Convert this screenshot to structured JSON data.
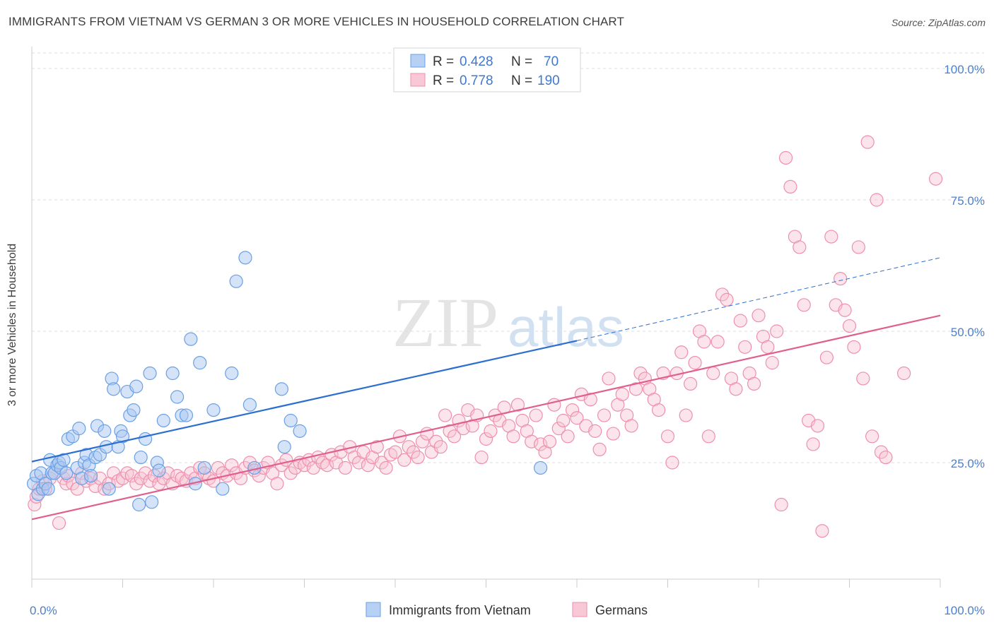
{
  "title": "IMMIGRANTS FROM VIETNAM VS GERMAN 3 OR MORE VEHICLES IN HOUSEHOLD CORRELATION CHART",
  "source": "Source: ZipAtlas.com",
  "watermark": {
    "zip": "ZIP",
    "atlas": "atlas"
  },
  "legend_top": [
    {
      "r_label": "R =",
      "r_value": "0.428",
      "n_label": "N =",
      "n_value": "70"
    },
    {
      "r_label": "R =",
      "r_value": "0.778",
      "n_label": "N =",
      "n_value": "190"
    }
  ],
  "colors": {
    "blue": "#6aa0e6",
    "blue_fill": "#a9c8f2",
    "blue_line": "#2d6fd0",
    "pink": "#ee90ad",
    "pink_fill": "#f6c4d3",
    "pink_line": "#e05f8e",
    "axis_text": "#4a7fd1",
    "grid": "#dddddd"
  },
  "chart_data": {
    "type": "scatter",
    "title": "IMMIGRANTS FROM VIETNAM VS GERMAN 3 OR MORE VEHICLES IN HOUSEHOLD CORRELATION CHART",
    "xlabel": "",
    "ylabel": "3 or more Vehicles in Household",
    "xlim": [
      0,
      100
    ],
    "ylim": [
      0,
      105
    ],
    "x_tick_labels": [
      "0.0%",
      "100.0%"
    ],
    "y_ticks": [
      25,
      50,
      75,
      100
    ],
    "y_tick_labels": [
      "25.0%",
      "50.0%",
      "75.0%",
      "100.0%"
    ],
    "grid": true,
    "legend_position": "bottom-center",
    "series": [
      {
        "name": "Immigrants from Vietnam",
        "r": 0.428,
        "n": 70,
        "trend": {
          "x0": 0,
          "y0": 25.2,
          "x1": 60,
          "y1": 48.2,
          "dashed_to_x": 100,
          "dashed_to_y": 64.0
        },
        "points": [
          [
            0.2,
            21
          ],
          [
            0.5,
            22.5
          ],
          [
            0.7,
            19
          ],
          [
            1,
            23
          ],
          [
            1.2,
            20
          ],
          [
            1.5,
            21
          ],
          [
            1.8,
            20
          ],
          [
            2,
            25.5
          ],
          [
            2.2,
            23
          ],
          [
            2.5,
            23
          ],
          [
            2.8,
            24.5
          ],
          [
            3,
            25
          ],
          [
            3.2,
            24
          ],
          [
            3.5,
            25.5
          ],
          [
            3.8,
            23
          ],
          [
            4,
            29.5
          ],
          [
            4.5,
            30
          ],
          [
            5,
            24
          ],
          [
            5.2,
            31.5
          ],
          [
            5.5,
            22
          ],
          [
            5.8,
            25
          ],
          [
            6,
            26.5
          ],
          [
            6.3,
            24.5
          ],
          [
            6.5,
            22.5
          ],
          [
            7,
            26
          ],
          [
            7.2,
            32
          ],
          [
            7.5,
            26.5
          ],
          [
            8,
            31
          ],
          [
            8.2,
            28
          ],
          [
            8.5,
            20
          ],
          [
            8.8,
            41
          ],
          [
            9,
            39
          ],
          [
            9.5,
            28
          ],
          [
            9.8,
            31
          ],
          [
            10,
            30
          ],
          [
            10.5,
            38.5
          ],
          [
            10.8,
            34
          ],
          [
            11.2,
            35
          ],
          [
            11.5,
            39.5
          ],
          [
            11.8,
            17
          ],
          [
            12,
            26
          ],
          [
            12.5,
            29.5
          ],
          [
            13,
            42
          ],
          [
            13.2,
            17.5
          ],
          [
            13.8,
            25
          ],
          [
            14,
            23.5
          ],
          [
            14.5,
            33
          ],
          [
            15.5,
            42
          ],
          [
            16,
            37.5
          ],
          [
            16.5,
            34
          ],
          [
            17,
            34
          ],
          [
            17.5,
            48.5
          ],
          [
            18,
            21
          ],
          [
            18.5,
            44
          ],
          [
            19,
            24
          ],
          [
            20,
            35
          ],
          [
            21,
            20
          ],
          [
            22,
            42
          ],
          [
            22.5,
            59.5
          ],
          [
            23.5,
            64
          ],
          [
            24,
            36
          ],
          [
            24.5,
            24
          ],
          [
            27.5,
            39
          ],
          [
            27.8,
            28
          ],
          [
            28.5,
            33
          ],
          [
            29.5,
            31
          ],
          [
            56,
            24
          ]
        ]
      },
      {
        "name": "Germans",
        "r": 0.778,
        "n": 190,
        "trend": {
          "x0": 0,
          "y0": 14.2,
          "x1": 100,
          "y1": 53.0
        },
        "points": [
          [
            0.3,
            17
          ],
          [
            0.5,
            18.5
          ],
          [
            0.8,
            20
          ],
          [
            1.2,
            21.5
          ],
          [
            1.5,
            20
          ],
          [
            2,
            22
          ],
          [
            2.5,
            23
          ],
          [
            3,
            13.5
          ],
          [
            3.5,
            22
          ],
          [
            3.8,
            21
          ],
          [
            4,
            22.5
          ],
          [
            4.5,
            21
          ],
          [
            5,
            20
          ],
          [
            5.5,
            23
          ],
          [
            6,
            21.5
          ],
          [
            6.5,
            22
          ],
          [
            7,
            20.5
          ],
          [
            7.5,
            22
          ],
          [
            8,
            20
          ],
          [
            8.5,
            21
          ],
          [
            9,
            23
          ],
          [
            9.5,
            21.5
          ],
          [
            10,
            22
          ],
          [
            10.5,
            23
          ],
          [
            11,
            22.5
          ],
          [
            11.5,
            21
          ],
          [
            12,
            22
          ],
          [
            12.5,
            23
          ],
          [
            13,
            21.5
          ],
          [
            13.5,
            22.5
          ],
          [
            14,
            21
          ],
          [
            14.5,
            22
          ],
          [
            15,
            23
          ],
          [
            15.5,
            21
          ],
          [
            16,
            22.5
          ],
          [
            16.5,
            22
          ],
          [
            17,
            21.5
          ],
          [
            17.5,
            23
          ],
          [
            18,
            22
          ],
          [
            18.5,
            24
          ],
          [
            19,
            23
          ],
          [
            19.5,
            22
          ],
          [
            20,
            21.5
          ],
          [
            20.5,
            24
          ],
          [
            21,
            23
          ],
          [
            21.5,
            22.5
          ],
          [
            22,
            24.5
          ],
          [
            22.5,
            23
          ],
          [
            23,
            22
          ],
          [
            23.5,
            24
          ],
          [
            24,
            25
          ],
          [
            24.5,
            23.5
          ],
          [
            25,
            22.5
          ],
          [
            25.5,
            24
          ],
          [
            26,
            25
          ],
          [
            26.5,
            23
          ],
          [
            27,
            21
          ],
          [
            27.5,
            24.5
          ],
          [
            28,
            25.5
          ],
          [
            28.5,
            23
          ],
          [
            29,
            24
          ],
          [
            29.5,
            25
          ],
          [
            30,
            24.5
          ],
          [
            30.5,
            25.5
          ],
          [
            31,
            24
          ],
          [
            31.5,
            26
          ],
          [
            32,
            25
          ],
          [
            32.5,
            24.5
          ],
          [
            33,
            26.5
          ],
          [
            33.5,
            25
          ],
          [
            34,
            27
          ],
          [
            34.5,
            24
          ],
          [
            35,
            28
          ],
          [
            35.5,
            26
          ],
          [
            36,
            25
          ],
          [
            36.5,
            27
          ],
          [
            37,
            24.5
          ],
          [
            37.5,
            26
          ],
          [
            38,
            28
          ],
          [
            38.5,
            25
          ],
          [
            39,
            24
          ],
          [
            39.5,
            26.5
          ],
          [
            40,
            27
          ],
          [
            40.5,
            30
          ],
          [
            41,
            25.5
          ],
          [
            41.5,
            28
          ],
          [
            42,
            27
          ],
          [
            42.5,
            26
          ],
          [
            43,
            29
          ],
          [
            43.5,
            30.5
          ],
          [
            44,
            27
          ],
          [
            44.5,
            29
          ],
          [
            45,
            28
          ],
          [
            45.5,
            34
          ],
          [
            46,
            31
          ],
          [
            46.5,
            30
          ],
          [
            47,
            33
          ],
          [
            47.5,
            31.5
          ],
          [
            48,
            35
          ],
          [
            48.5,
            32
          ],
          [
            49,
            34
          ],
          [
            49.5,
            26
          ],
          [
            50,
            29.5
          ],
          [
            50.5,
            31
          ],
          [
            51,
            34
          ],
          [
            51.5,
            33
          ],
          [
            52,
            35.5
          ],
          [
            52.5,
            32
          ],
          [
            53,
            30
          ],
          [
            53.5,
            36
          ],
          [
            54,
            33
          ],
          [
            54.5,
            31
          ],
          [
            55,
            29
          ],
          [
            55.5,
            34
          ],
          [
            56,
            28.5
          ],
          [
            56.5,
            27
          ],
          [
            57,
            29
          ],
          [
            57.5,
            36
          ],
          [
            58,
            31.5
          ],
          [
            58.5,
            33
          ],
          [
            59,
            30
          ],
          [
            59.5,
            35
          ],
          [
            60,
            33.5
          ],
          [
            60.5,
            38
          ],
          [
            61,
            32
          ],
          [
            61.5,
            37
          ],
          [
            62,
            31
          ],
          [
            62.5,
            27.5
          ],
          [
            63,
            34
          ],
          [
            63.5,
            41
          ],
          [
            64,
            30.5
          ],
          [
            64.5,
            36
          ],
          [
            65,
            38
          ],
          [
            65.5,
            34
          ],
          [
            66,
            32
          ],
          [
            66.5,
            39
          ],
          [
            67,
            42
          ],
          [
            67.5,
            41
          ],
          [
            68,
            39
          ],
          [
            68.5,
            37
          ],
          [
            69,
            35
          ],
          [
            69.5,
            42
          ],
          [
            70,
            30
          ],
          [
            70.5,
            25
          ],
          [
            71,
            42
          ],
          [
            71.5,
            46
          ],
          [
            72,
            34
          ],
          [
            72.5,
            40
          ],
          [
            73,
            44
          ],
          [
            73.5,
            50
          ],
          [
            74,
            48
          ],
          [
            74.5,
            30
          ],
          [
            75,
            42
          ],
          [
            75.5,
            48
          ],
          [
            76,
            57
          ],
          [
            76.5,
            56
          ],
          [
            77,
            41
          ],
          [
            77.5,
            39
          ],
          [
            78,
            52
          ],
          [
            78.5,
            47
          ],
          [
            79,
            42
          ],
          [
            79.5,
            40
          ],
          [
            80,
            53
          ],
          [
            80.5,
            49
          ],
          [
            81,
            47
          ],
          [
            81.5,
            44
          ],
          [
            82,
            50
          ],
          [
            82.5,
            17
          ],
          [
            83,
            83
          ],
          [
            83.5,
            77.5
          ],
          [
            84,
            68
          ],
          [
            84.5,
            66
          ],
          [
            85,
            55
          ],
          [
            85.5,
            33
          ],
          [
            86,
            28.5
          ],
          [
            86.5,
            32
          ],
          [
            87,
            12
          ],
          [
            87.5,
            45
          ],
          [
            88,
            68
          ],
          [
            88.5,
            55
          ],
          [
            89,
            60
          ],
          [
            89.5,
            54
          ],
          [
            90,
            51
          ],
          [
            90.5,
            47
          ],
          [
            91,
            66
          ],
          [
            91.5,
            41
          ],
          [
            92,
            86
          ],
          [
            92.5,
            30
          ],
          [
            93,
            75
          ],
          [
            93.5,
            27
          ],
          [
            94,
            26
          ],
          [
            96,
            42
          ],
          [
            99.5,
            79
          ]
        ]
      }
    ]
  }
}
